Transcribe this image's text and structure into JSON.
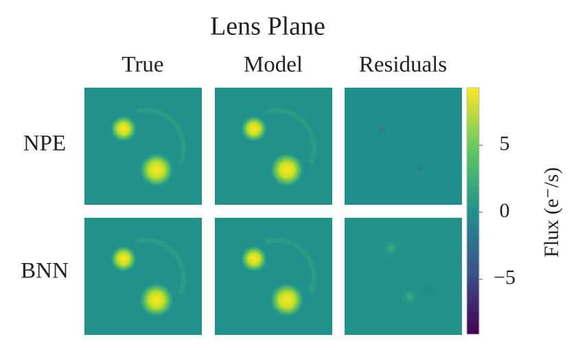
{
  "chart_data": {
    "type": "image_grid",
    "title": "Lens Plane",
    "columns": [
      "True",
      "Model",
      "Residuals"
    ],
    "rows": [
      "NPE",
      "BNN"
    ],
    "colorbar": {
      "label": "Flux (e⁻/s)",
      "clim": [
        -9.1,
        9.3
      ],
      "ticks": [
        5,
        0,
        {
          "value": -5,
          "label": "−5"
        }
      ],
      "colormap": [
        "#440154",
        "#3b528b",
        "#21918c",
        "#5ec962",
        "#fde725"
      ]
    }
  }
}
